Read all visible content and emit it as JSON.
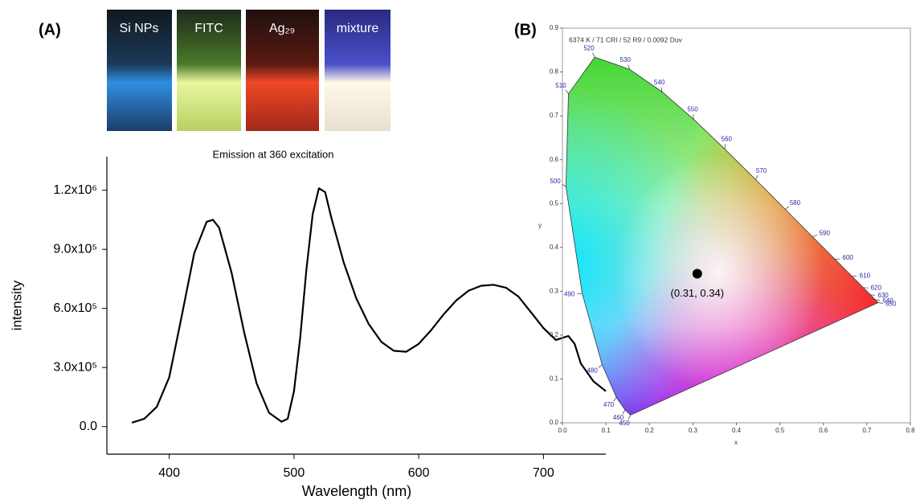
{
  "chart_data": [
    {
      "type": "line",
      "panel": "(A)",
      "title": "Emission at 360 excitation",
      "xlabel": "Wavelength (nm)",
      "ylabel": "intensity",
      "photos": [
        "Si NPs",
        "FITC",
        "Ag₂₉",
        "mixture"
      ],
      "x": [
        370,
        380,
        390,
        400,
        410,
        420,
        430,
        435,
        440,
        450,
        460,
        470,
        480,
        490,
        495,
        500,
        505,
        510,
        515,
        520,
        525,
        530,
        540,
        550,
        560,
        570,
        580,
        590,
        600,
        610,
        620,
        630,
        640,
        650,
        660,
        670,
        680,
        690,
        700,
        710,
        715,
        720,
        725,
        730,
        740,
        750
      ],
      "values": [
        20000,
        40000,
        100000,
        250000,
        560000,
        880000,
        1040000,
        1050000,
        1010000,
        780000,
        480000,
        220000,
        70000,
        25000,
        40000,
        180000,
        450000,
        800000,
        1080000,
        1210000,
        1190000,
        1060000,
        830000,
        650000,
        520000,
        430000,
        385000,
        380000,
        420000,
        490000,
        570000,
        640000,
        690000,
        715000,
        720000,
        705000,
        660000,
        580000,
        500000,
        440000,
        450000,
        460000,
        420000,
        320000,
        230000,
        180000
      ],
      "color": "#000000",
      "xlim": [
        350,
        750
      ],
      "xticks": [
        400,
        500,
        600,
        700
      ],
      "ylim": [
        -140000,
        1370000
      ],
      "yticks": [
        {
          "value": 0,
          "label": "0.0"
        },
        {
          "value": 300000,
          "label": "3.0x10⁵"
        },
        {
          "value": 600000,
          "label": "6.0x10⁵"
        },
        {
          "value": 900000,
          "label": "9.0x10⁵"
        },
        {
          "value": 1200000,
          "label": "1.2x10⁶"
        }
      ]
    },
    {
      "type": "scatter",
      "panel": "(B)",
      "title": "6374 K / 71 CRI / 52 R9 / 0.0092 Duv",
      "xlabel": "x",
      "ylabel": "y",
      "x": [
        0.31
      ],
      "values": [
        0.34
      ],
      "value_labels": [
        "(0.31, 0.34)"
      ],
      "color": "#000000",
      "xlim": [
        0,
        0.8
      ],
      "xticks": [
        {
          "value": 0,
          "label": "0.0"
        },
        0.1,
        0.2,
        0.3,
        0.4,
        0.5,
        0.6,
        0.7,
        0.8
      ],
      "ylim": [
        0,
        0.9
      ],
      "yticks": [
        {
          "value": 0,
          "label": "0.0"
        },
        0.1,
        0.2,
        0.3,
        0.4,
        0.5,
        0.6,
        0.7,
        0.8,
        0.9
      ],
      "spectral_locus": {
        "wavelengths": [
          450,
          460,
          470,
          480,
          490,
          500,
          510,
          520,
          530,
          540,
          550,
          560,
          570,
          580,
          590,
          600,
          610,
          620,
          630,
          640,
          650
        ],
        "x": [
          0.1566,
          0.144,
          0.1241,
          0.0913,
          0.0454,
          0.0082,
          0.0139,
          0.0743,
          0.1547,
          0.2296,
          0.3016,
          0.3731,
          0.4441,
          0.5125,
          0.5752,
          0.627,
          0.6658,
          0.6915,
          0.7079,
          0.719,
          0.726
        ],
        "y": [
          0.0177,
          0.0297,
          0.0578,
          0.1327,
          0.295,
          0.5384,
          0.7502,
          0.8338,
          0.8059,
          0.7543,
          0.6923,
          0.6245,
          0.5547,
          0.4866,
          0.4242,
          0.3725,
          0.334,
          0.3083,
          0.292,
          0.2809,
          0.274
        ]
      }
    }
  ]
}
